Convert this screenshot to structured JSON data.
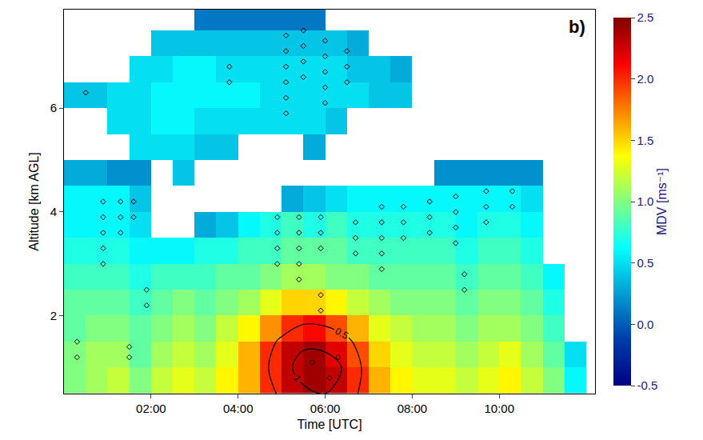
{
  "chart_data": {
    "type": "heatmap",
    "x_label": "Time [UTC]",
    "y_label": "Altitude [km AGL]",
    "annotations": [
      "b)"
    ],
    "xlim": [
      0,
      12.2
    ],
    "xticks": [
      {
        "value": 2,
        "label": "02:00"
      },
      {
        "value": 4,
        "label": "04:00"
      },
      {
        "value": 6,
        "label": "06:00"
      },
      {
        "value": 8,
        "label": "08:00"
      },
      {
        "value": 10,
        "label": "10:00"
      }
    ],
    "ylim": [
      0.5,
      7.9
    ],
    "yticks": [
      2,
      4,
      6
    ],
    "grid": false,
    "color": "Jet",
    "x": [
      0.25,
      0.75,
      1.25,
      1.75,
      2.25,
      2.75,
      3.25,
      3.75,
      4.25,
      4.75,
      5.25,
      5.75,
      6.25,
      6.75,
      7.25,
      7.75,
      8.25,
      8.75,
      9.25,
      9.75,
      10.25,
      10.75,
      11.25,
      11.75
    ],
    "y": [
      0.75,
      1.25,
      1.75,
      2.25,
      2.75,
      3.25,
      3.75,
      4.25,
      4.75,
      5.25,
      5.75,
      6.25,
      6.75,
      7.25,
      7.75
    ],
    "z": [
      [
        1.0,
        1.1,
        1.2,
        1.0,
        1.2,
        1.3,
        1.2,
        1.4,
        1.6,
        2.0,
        2.3,
        2.4,
        2.3,
        2.0,
        1.6,
        1.4,
        1.3,
        1.3,
        1.2,
        1.3,
        1.4,
        1.2,
        1.0,
        0.6
      ],
      [
        1.0,
        1.1,
        1.1,
        0.9,
        1.1,
        1.2,
        1.1,
        1.3,
        1.6,
        2.0,
        2.3,
        2.4,
        2.2,
        1.9,
        1.5,
        1.3,
        1.2,
        1.2,
        1.1,
        1.2,
        1.3,
        1.1,
        0.9,
        0.5
      ],
      [
        0.9,
        1.0,
        1.0,
        0.9,
        1.0,
        1.1,
        1.0,
        1.2,
        1.4,
        1.7,
        2.0,
        2.1,
        1.9,
        1.6,
        1.3,
        1.2,
        1.1,
        1.1,
        1.0,
        1.1,
        1.1,
        1.0,
        0.8,
        null
      ],
      [
        0.9,
        0.9,
        0.9,
        0.8,
        0.9,
        1.0,
        0.9,
        1.0,
        1.1,
        1.3,
        1.5,
        1.5,
        1.4,
        1.2,
        1.1,
        1.0,
        1.0,
        1.0,
        0.9,
        1.0,
        1.0,
        0.9,
        0.7,
        null
      ],
      [
        0.8,
        0.8,
        0.8,
        0.7,
        0.8,
        0.8,
        0.8,
        0.9,
        0.9,
        1.0,
        1.1,
        1.1,
        1.0,
        1.0,
        0.9,
        0.9,
        0.9,
        0.9,
        0.8,
        0.9,
        0.9,
        0.8,
        0.6,
        null
      ],
      [
        0.7,
        0.7,
        0.7,
        0.6,
        0.6,
        0.6,
        0.7,
        0.7,
        0.8,
        0.8,
        0.9,
        0.9,
        0.9,
        0.8,
        0.8,
        0.8,
        0.8,
        0.8,
        0.7,
        0.8,
        0.8,
        0.7,
        null,
        null
      ],
      [
        0.6,
        0.6,
        0.6,
        0.5,
        null,
        null,
        0.3,
        0.4,
        0.6,
        0.7,
        0.8,
        0.7,
        0.8,
        0.7,
        0.7,
        0.7,
        0.7,
        0.7,
        0.6,
        0.7,
        0.7,
        0.6,
        null,
        null
      ],
      [
        0.6,
        0.6,
        0.6,
        0.4,
        null,
        null,
        null,
        null,
        null,
        null,
        0.3,
        0.4,
        0.5,
        0.6,
        0.6,
        0.6,
        0.6,
        0.6,
        0.6,
        0.6,
        0.6,
        0.5,
        null,
        null
      ],
      [
        0.3,
        0.3,
        0.2,
        0.2,
        null,
        0.4,
        null,
        null,
        null,
        null,
        null,
        null,
        null,
        null,
        null,
        null,
        null,
        0.2,
        0.2,
        0.2,
        0.2,
        0.2,
        null,
        null
      ],
      [
        null,
        null,
        null,
        0.5,
        0.5,
        0.5,
        0.4,
        0.4,
        null,
        null,
        null,
        0.3,
        null,
        null,
        null,
        null,
        null,
        null,
        null,
        null,
        null,
        null,
        null,
        null
      ],
      [
        null,
        null,
        0.5,
        0.5,
        0.6,
        0.6,
        0.5,
        0.5,
        0.5,
        0.5,
        0.5,
        0.5,
        0.4,
        null,
        null,
        null,
        null,
        null,
        null,
        null,
        null,
        null,
        null,
        null
      ],
      [
        0.4,
        0.4,
        0.5,
        0.5,
        0.6,
        0.6,
        0.6,
        0.6,
        0.6,
        0.5,
        0.5,
        0.5,
        0.5,
        0.5,
        0.4,
        0.4,
        null,
        null,
        null,
        null,
        null,
        null,
        null,
        null
      ],
      [
        null,
        null,
        null,
        0.5,
        0.5,
        0.6,
        0.6,
        0.5,
        0.5,
        0.5,
        0.5,
        0.5,
        0.5,
        0.4,
        0.4,
        0.3,
        null,
        null,
        null,
        null,
        null,
        null,
        null,
        null
      ],
      [
        null,
        null,
        null,
        null,
        0.4,
        0.4,
        0.4,
        0.4,
        0.4,
        0.4,
        0.4,
        0.4,
        0.4,
        0.3,
        null,
        null,
        null,
        null,
        null,
        null,
        null,
        null,
        null,
        null
      ],
      [
        null,
        null,
        null,
        null,
        null,
        null,
        0.1,
        0.1,
        0.1,
        0.1,
        0.1,
        0.1,
        null,
        null,
        null,
        null,
        null,
        null,
        null,
        null,
        null,
        null,
        null,
        null
      ]
    ],
    "colorbar": {
      "title": "MDV [ms⁻¹]",
      "range": [
        -0.5,
        2.5
      ],
      "ticks": [
        -0.5,
        {
          "value": 0,
          "label": "0.0"
        },
        0.5,
        {
          "value": 1,
          "label": "1.0"
        },
        1.5,
        {
          "value": 2,
          "label": "2.0"
        },
        2.5
      ]
    },
    "contours": {
      "x": [
        4.5,
        5,
        5.5,
        6,
        6.5,
        7
      ],
      "y": [
        0.5,
        1,
        1.5,
        2
      ],
      "z": [
        [
          0.2,
          0.6,
          0.9,
          1.0,
          0.7,
          0.3
        ],
        [
          0.3,
          0.8,
          1.2,
          1.3,
          0.9,
          0.3
        ],
        [
          0.2,
          0.6,
          0.9,
          0.8,
          0.6,
          0.2
        ],
        [
          0,
          0.1,
          0.3,
          0.3,
          0.1,
          0
        ]
      ],
      "levels": [
        0.5,
        1
      ],
      "color": "#000000"
    },
    "markers": {
      "marker": "diamond-open",
      "color": "#000000",
      "x": [
        0.9,
        0.9,
        0.9,
        0.9,
        0.9,
        1.3,
        1.3,
        1.3,
        1.6,
        1.6,
        1.9,
        1.9,
        0.3,
        0.3,
        1.5,
        1.5,
        4.9,
        4.9,
        4.9,
        4.9,
        5.4,
        5.4,
        5.4,
        5.4,
        5.4,
        5.9,
        5.9,
        5.9,
        5.9,
        5.9,
        6.7,
        6.7,
        6.7,
        7.3,
        7.3,
        7.3,
        7.3,
        7.3,
        7.8,
        7.8,
        7.8,
        8.4,
        8.4,
        8.4,
        9.0,
        9.0,
        9.0,
        9.0,
        9.7,
        9.7,
        9.7,
        10.3,
        10.3,
        9.2,
        9.2,
        5.1,
        5.1,
        5.1,
        5.1,
        5.1,
        5.1,
        5.5,
        5.5,
        5.5,
        5.5,
        6.0,
        6.0,
        6.0,
        6.0,
        6.0,
        6.5,
        6.5,
        6.5,
        3.8,
        3.8,
        0.5,
        5.7,
        6.1,
        6.3
      ],
      "y": [
        3.0,
        3.3,
        3.6,
        3.9,
        4.2,
        3.6,
        3.9,
        4.2,
        4.2,
        3.9,
        2.2,
        2.5,
        1.2,
        1.5,
        1.2,
        1.4,
        3.9,
        3.6,
        3.3,
        3.0,
        3.9,
        3.6,
        3.3,
        3.0,
        2.7,
        3.9,
        3.6,
        3.3,
        2.4,
        2.1,
        3.8,
        3.5,
        3.2,
        4.1,
        3.8,
        3.5,
        3.2,
        2.9,
        4.1,
        3.8,
        3.5,
        4.2,
        3.9,
        3.6,
        4.3,
        4.0,
        3.7,
        3.4,
        4.4,
        4.1,
        3.8,
        4.4,
        4.1,
        2.8,
        2.5,
        7.4,
        7.1,
        6.8,
        6.5,
        6.2,
        5.9,
        7.5,
        7.2,
        6.9,
        6.6,
        7.3,
        7.0,
        6.7,
        6.4,
        6.1,
        7.1,
        6.8,
        6.5,
        6.8,
        6.5,
        6.3,
        1.1,
        0.8,
        1.2
      ]
    }
  }
}
